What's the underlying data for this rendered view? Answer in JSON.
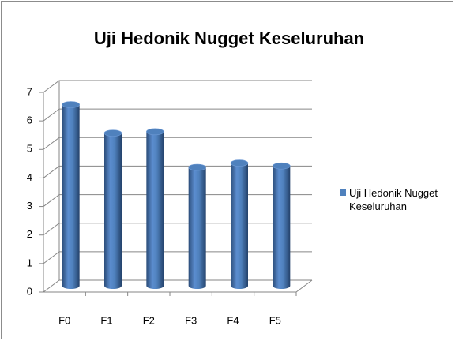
{
  "chart_data": {
    "type": "bar",
    "title": "Uji Hedonik Nugget Keseluruhan",
    "categories": [
      "F0",
      "F1",
      "F2",
      "F3",
      "F4",
      "F5"
    ],
    "series": [
      {
        "name": "Uji Hedonik Nugget Keseluruhan",
        "color": "#4f81bd",
        "values": [
          6.35,
          5.35,
          5.4,
          4.15,
          4.3,
          4.2
        ]
      }
    ],
    "ylim": [
      0,
      7
    ],
    "yticks": [
      0,
      1,
      2,
      3,
      4,
      5,
      6,
      7
    ],
    "grid": true,
    "legend": "right"
  }
}
